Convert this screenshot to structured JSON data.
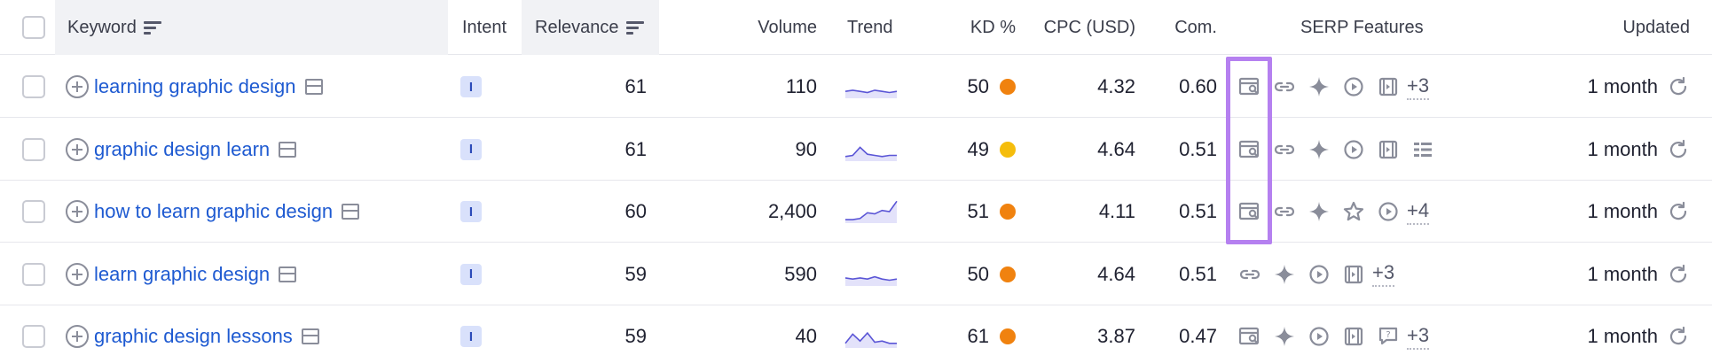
{
  "header": {
    "keyword": "Keyword",
    "intent": "Intent",
    "relevance": "Relevance",
    "volume": "Volume",
    "trend": "Trend",
    "kd": "KD %",
    "cpc": "CPC (USD)",
    "com": "Com.",
    "serp": "SERP Features",
    "updated": "Updated"
  },
  "rows": [
    {
      "keyword": "learning graphic design",
      "intent": "I",
      "relevance": "61",
      "volume": "110",
      "trend": [
        0.3,
        0.35,
        0.3,
        0.25,
        0.35,
        0.3,
        0.25,
        0.3
      ],
      "kd": "50",
      "kd_color": "#f0820f",
      "cpc": "4.32",
      "com": "0.60",
      "serp_icons": [
        "page-search-icon",
        "link-icon",
        "sparkle-icon",
        "play-icon",
        "video-icon"
      ],
      "serp_more": "+3",
      "updated": "1 month"
    },
    {
      "keyword": "graphic design learn",
      "intent": "I",
      "relevance": "61",
      "volume": "90",
      "trend": [
        0.2,
        0.25,
        0.6,
        0.3,
        0.25,
        0.2,
        0.25,
        0.25
      ],
      "kd": "49",
      "kd_color": "#f5bd0c",
      "cpc": "4.64",
      "com": "0.51",
      "serp_icons": [
        "page-search-icon",
        "link-icon",
        "sparkle-icon",
        "play-icon",
        "video-icon",
        "list-icon"
      ],
      "serp_more": "",
      "updated": "1 month"
    },
    {
      "keyword": "how to learn graphic design",
      "intent": "I",
      "relevance": "60",
      "volume": "2,400",
      "trend": [
        0.15,
        0.15,
        0.2,
        0.45,
        0.4,
        0.55,
        0.5,
        0.95
      ],
      "kd": "51",
      "kd_color": "#f0820f",
      "cpc": "4.11",
      "com": "0.51",
      "serp_icons": [
        "page-search-icon",
        "link-icon",
        "sparkle-icon",
        "star-icon",
        "play-icon"
      ],
      "serp_more": "+4",
      "updated": "1 month"
    },
    {
      "keyword": "learn graphic design",
      "intent": "I",
      "relevance": "59",
      "volume": "590",
      "trend": [
        0.35,
        0.3,
        0.35,
        0.3,
        0.4,
        0.3,
        0.25,
        0.3
      ],
      "kd": "50",
      "kd_color": "#f0820f",
      "cpc": "4.64",
      "com": "0.51",
      "serp_icons": [
        "link-icon",
        "sparkle-icon",
        "play-icon",
        "video-icon"
      ],
      "serp_more": "+3",
      "updated": "1 month"
    },
    {
      "keyword": "graphic design lessons",
      "intent": "I",
      "relevance": "59",
      "volume": "40",
      "trend": [
        0.2,
        0.6,
        0.3,
        0.65,
        0.25,
        0.3,
        0.2,
        0.2
      ],
      "kd": "61",
      "kd_color": "#f0820f",
      "cpc": "3.87",
      "com": "0.47",
      "serp_icons": [
        "page-search-icon",
        "sparkle-icon",
        "play-icon",
        "video-icon",
        "question-icon"
      ],
      "serp_more": "+3",
      "updated": "1 month"
    }
  ],
  "colors": {
    "accent_link": "#1e5ad1",
    "highlight": "#b580f0",
    "trend_line": "#5a55d6",
    "trend_fill": "#e3e2fa"
  }
}
